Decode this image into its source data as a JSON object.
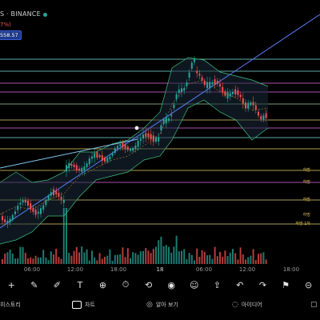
{
  "header": {
    "symbol_text": "S · BINANCE",
    "change_text": "7%)",
    "price_badge": "558.57"
  },
  "colors": {
    "background": "#000000",
    "up": "#26a69a",
    "down": "#ef5350",
    "trendline": "#5b7cf7",
    "level_yellow": "#e8d66b",
    "level_cyan": "#7fe0e0",
    "level_magenta": "#e36be8"
  },
  "level_labels": [
    "하방",
    "하방",
    "하방",
    "하방",
    "하방 1차"
  ],
  "x_axis": {
    "ticks": [
      "06:00",
      "12:00",
      "18:00",
      "18",
      "06:00",
      "12:00",
      "18:00"
    ]
  },
  "toolbar": {
    "icons": [
      "crosshair-icon",
      "pencil-icon",
      "brush-icon",
      "text-icon",
      "plus-icon",
      "clock-icon",
      "replay-icon",
      "camera-icon",
      "emoji-icon",
      "share-icon",
      "undo-icon",
      "redo-icon",
      "alert-icon",
      "more-icon"
    ],
    "glyphs": [
      "+",
      "✎",
      "✐",
      "T",
      "⊕",
      "⏱",
      "⟲",
      "◉",
      "☺",
      "⇪",
      "↶",
      "↷",
      "⚑",
      "⊝"
    ]
  },
  "tabs": [
    {
      "label": "히스토리",
      "icon": "history-icon"
    },
    {
      "label": "차트",
      "icon": "chart-icon"
    },
    {
      "label": "알아 보기",
      "icon": "compass-icon"
    },
    {
      "label": "아이디어",
      "icon": "bulb-icon"
    }
  ]
}
